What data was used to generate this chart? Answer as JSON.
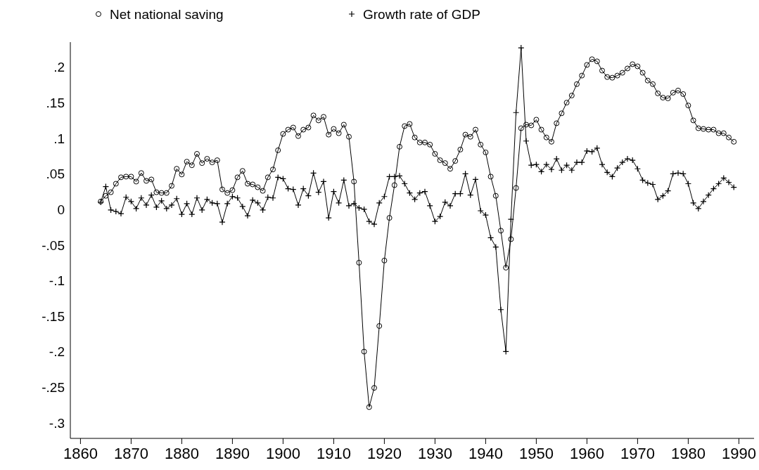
{
  "chart_data": {
    "type": "line",
    "legend": "top",
    "xlim": [
      1858,
      1993
    ],
    "ylim": [
      -0.322,
      0.235
    ],
    "xticks": [
      1860,
      1870,
      1880,
      1890,
      1900,
      1910,
      1920,
      1930,
      1940,
      1950,
      1960,
      1970,
      1980,
      1990
    ],
    "yticks": [
      {
        "value": -0.3,
        "label": "-.3"
      },
      {
        "value": -0.25,
        "label": "-.25"
      },
      {
        "value": -0.2,
        "label": "-.2"
      },
      {
        "value": -0.15,
        "label": "-.15"
      },
      {
        "value": -0.1,
        "label": "-.1"
      },
      {
        "value": -0.05,
        "label": "-.05"
      },
      0,
      {
        "value": 0.05,
        "label": ".05"
      },
      {
        "value": 0.1,
        "label": ".1"
      },
      {
        "value": 0.15,
        "label": ".15"
      },
      {
        "value": 0.2,
        "label": ".2"
      }
    ],
    "x": [
      1864,
      1865,
      1866,
      1867,
      1868,
      1869,
      1870,
      1871,
      1872,
      1873,
      1874,
      1875,
      1876,
      1877,
      1878,
      1879,
      1880,
      1881,
      1882,
      1883,
      1884,
      1885,
      1886,
      1887,
      1888,
      1889,
      1890,
      1891,
      1892,
      1893,
      1894,
      1895,
      1896,
      1897,
      1898,
      1899,
      1900,
      1901,
      1902,
      1903,
      1904,
      1905,
      1906,
      1907,
      1908,
      1909,
      1910,
      1911,
      1912,
      1913,
      1914,
      1915,
      1916,
      1917,
      1918,
      1919,
      1920,
      1921,
      1922,
      1923,
      1924,
      1925,
      1926,
      1927,
      1928,
      1929,
      1930,
      1931,
      1932,
      1933,
      1934,
      1935,
      1936,
      1937,
      1938,
      1939,
      1940,
      1941,
      1942,
      1943,
      1944,
      1945,
      1946,
      1947,
      1948,
      1949,
      1950,
      1951,
      1952,
      1953,
      1954,
      1955,
      1956,
      1957,
      1958,
      1959,
      1960,
      1961,
      1962,
      1963,
      1964,
      1965,
      1966,
      1967,
      1968,
      1969,
      1970,
      1971,
      1972,
      1973,
      1974,
      1975,
      1976,
      1977,
      1978,
      1979,
      1980,
      1981,
      1982,
      1983,
      1984,
      1985,
      1986,
      1987,
      1988,
      1989
    ],
    "series": [
      {
        "name": "Net national saving",
        "color": "#000000",
        "marker": "circle",
        "values": [
          0.011,
          0.019,
          0.024,
          0.036,
          0.045,
          0.046,
          0.046,
          0.039,
          0.051,
          0.04,
          0.042,
          0.024,
          0.023,
          0.023,
          0.033,
          0.057,
          0.049,
          0.067,
          0.062,
          0.078,
          0.065,
          0.071,
          0.066,
          0.069,
          0.028,
          0.023,
          0.027,
          0.045,
          0.054,
          0.036,
          0.035,
          0.031,
          0.026,
          0.045,
          0.056,
          0.083,
          0.106,
          0.112,
          0.115,
          0.103,
          0.112,
          0.115,
          0.132,
          0.125,
          0.13,
          0.105,
          0.113,
          0.107,
          0.119,
          0.102,
          0.039,
          -0.075,
          -0.2,
          -0.278,
          -0.251,
          -0.164,
          -0.072,
          -0.012,
          0.034,
          0.088,
          0.117,
          0.12,
          0.101,
          0.094,
          0.094,
          0.091,
          0.078,
          0.069,
          0.065,
          0.057,
          0.068,
          0.084,
          0.105,
          0.102,
          0.112,
          0.091,
          0.08,
          0.046,
          0.019,
          -0.03,
          -0.082,
          -0.042,
          0.03,
          0.114,
          0.119,
          0.118,
          0.126,
          0.112,
          0.101,
          0.095,
          0.121,
          0.135,
          0.15,
          0.16,
          0.176,
          0.188,
          0.203,
          0.211,
          0.208,
          0.195,
          0.186,
          0.185,
          0.188,
          0.192,
          0.198,
          0.204,
          0.201,
          0.192,
          0.181,
          0.176,
          0.163,
          0.157,
          0.156,
          0.164,
          0.167,
          0.162,
          0.146,
          0.125,
          0.114,
          0.113,
          0.112,
          0.112,
          0.107,
          0.107,
          0.101,
          0.095
        ]
      },
      {
        "name": "Growth rate of GDP",
        "color": "#000000",
        "marker": "cross",
        "values": [
          0.01,
          0.032,
          -0.001,
          -0.003,
          -0.006,
          0.017,
          0.011,
          0.001,
          0.016,
          0.006,
          0.02,
          0.003,
          0.012,
          0.001,
          0.006,
          0.015,
          -0.007,
          0.008,
          -0.007,
          0.016,
          -0.001,
          0.014,
          0.009,
          0.008,
          -0.018,
          0.008,
          0.018,
          0.016,
          0.004,
          -0.009,
          0.013,
          0.009,
          -0.001,
          0.017,
          0.016,
          0.045,
          0.043,
          0.029,
          0.028,
          0.006,
          0.029,
          0.019,
          0.051,
          0.024,
          0.039,
          -0.012,
          0.025,
          0.009,
          0.041,
          0.005,
          0.008,
          0.002,
          0.0,
          -0.017,
          -0.021,
          0.009,
          0.018,
          0.046,
          0.046,
          0.047,
          0.036,
          0.023,
          0.014,
          0.023,
          0.025,
          0.005,
          -0.017,
          -0.01,
          0.01,
          0.005,
          0.022,
          0.022,
          0.05,
          0.02,
          0.042,
          -0.002,
          -0.008,
          -0.04,
          -0.053,
          -0.141,
          -0.2,
          -0.014,
          0.136,
          0.227,
          0.096,
          0.062,
          0.063,
          0.053,
          0.063,
          0.056,
          0.071,
          0.055,
          0.062,
          0.055,
          0.066,
          0.066,
          0.082,
          0.081,
          0.086,
          0.063,
          0.052,
          0.046,
          0.058,
          0.066,
          0.071,
          0.069,
          0.057,
          0.041,
          0.037,
          0.035,
          0.014,
          0.019,
          0.026,
          0.05,
          0.051,
          0.05,
          0.036,
          0.009,
          0.001,
          0.011,
          0.02,
          0.029,
          0.036,
          0.044,
          0.038,
          0.031
        ]
      }
    ]
  }
}
